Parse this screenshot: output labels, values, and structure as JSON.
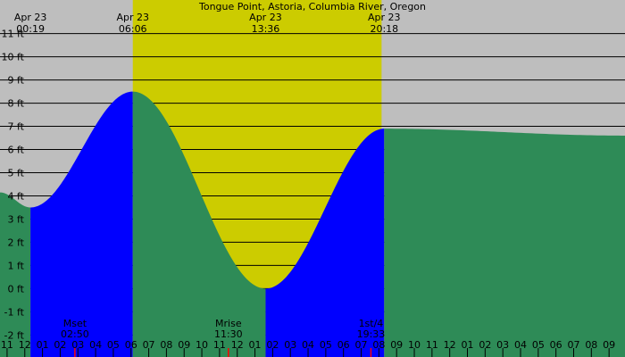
{
  "chart_data": {
    "type": "area",
    "title": "Tongue Point, Astoria, Columbia River, Oregon",
    "x_unit": "hour of day",
    "y_unit": "ft",
    "xlim": [
      -1.4,
      33.9
    ],
    "ylim": [
      -2.95,
      12.45
    ],
    "y_ticks": [
      -2,
      -1,
      0,
      1,
      2,
      3,
      4,
      5,
      6,
      7,
      8,
      9,
      10,
      11
    ],
    "y_tick_labels": [
      "-2 ft",
      "-1 ft",
      "0 ft",
      "1 ft",
      "2 ft",
      "3 ft",
      "4 ft",
      "5 ft",
      "6 ft",
      "7 ft",
      "8 ft",
      "9 ft",
      "10 ft",
      "11 ft"
    ],
    "x_ticks": [
      -1,
      0,
      1,
      2,
      3,
      4,
      5,
      6,
      7,
      8,
      9,
      10,
      11,
      12,
      13,
      14,
      15,
      16,
      17,
      18,
      19,
      20,
      21,
      22,
      23,
      24,
      25,
      26,
      27,
      28,
      29,
      30,
      31,
      32,
      33
    ],
    "x_tick_labels": [
      "11",
      "12",
      "01",
      "02",
      "03",
      "04",
      "05",
      "06",
      "07",
      "08",
      "09",
      "10",
      "11",
      "12",
      "01",
      "02",
      "03",
      "04",
      "05",
      "06",
      "07",
      "08",
      "09",
      "10",
      "11",
      "12",
      "01",
      "02",
      "03",
      "04",
      "05",
      "06",
      "07",
      "08",
      "09"
    ],
    "tides": [
      {
        "date": "Apr 23",
        "time": "00:19",
        "hour": 0.32,
        "height_ft": 3.5,
        "kind": "low"
      },
      {
        "date": "Apr 23",
        "time": "06:06",
        "hour": 6.1,
        "height_ft": 8.5,
        "kind": "high"
      },
      {
        "date": "Apr 23",
        "time": "13:36",
        "hour": 13.6,
        "height_ft": 0.0,
        "kind": "low"
      },
      {
        "date": "Apr 23",
        "time": "20:18",
        "hour": 20.3,
        "height_ft": 6.9,
        "kind": "high"
      }
    ],
    "tide_start_ft": 4.15,
    "tide_end_ft": 6.6,
    "daylight": {
      "sunrise_hour": 6.1,
      "sunset_hour": 20.15
    },
    "moon_events": [
      {
        "label": "Mset",
        "time": "02:50",
        "hour": 2.83
      },
      {
        "label": "Mrise",
        "time": "11:30",
        "hour": 11.5
      },
      {
        "label": "1st/4",
        "time": "19:33",
        "hour": 19.55
      }
    ],
    "colors": {
      "night": "#bebebe",
      "day": "#cccc00",
      "rising": "#0000ff",
      "falling": "#2e8b57",
      "grid": "#000000",
      "moon_marker": "#ff0000"
    },
    "grid": true
  }
}
